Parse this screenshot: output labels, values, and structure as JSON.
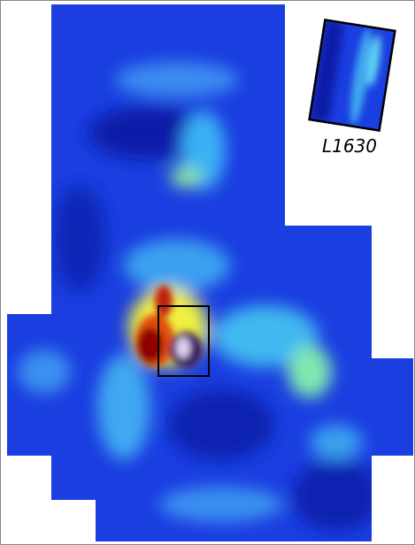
{
  "inset": {
    "label": "L1630"
  }
}
